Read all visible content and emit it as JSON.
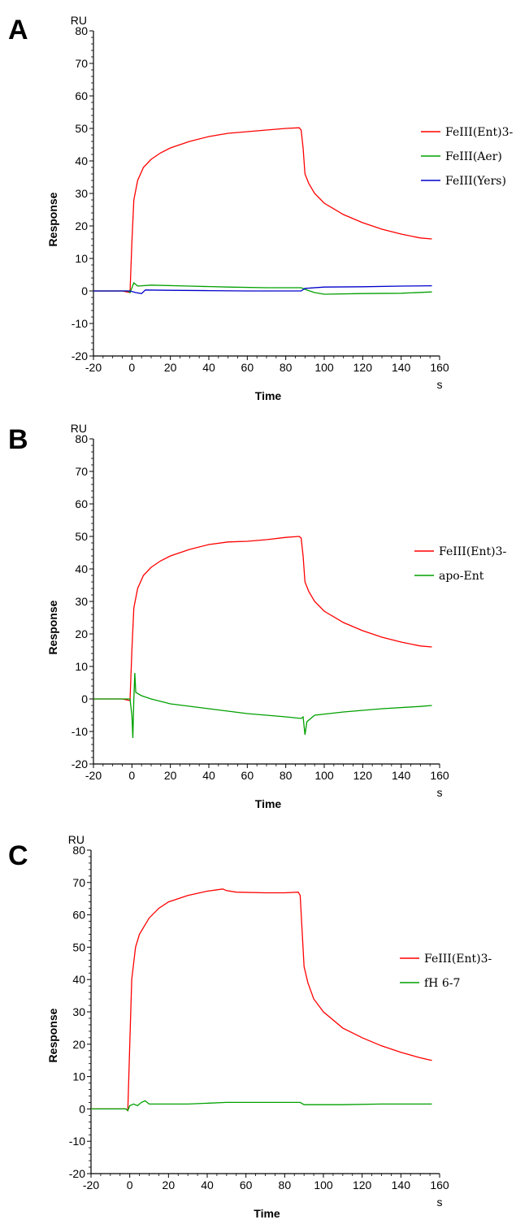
{
  "chart_data": [
    {
      "panel_label": "A",
      "type": "line",
      "xlabel": "Time",
      "x_unit": "s",
      "ylabel": "Response",
      "y_unit": "RU",
      "xlim": [
        -20,
        160
      ],
      "ylim": [
        -20,
        80
      ],
      "x_ticks": [
        "-20",
        "0",
        "20",
        "40",
        "60",
        "80",
        "100",
        "120",
        "140",
        "160"
      ],
      "y_ticks": [
        "80",
        "70",
        "60",
        "50",
        "40",
        "30",
        "20",
        "10",
        "0",
        "-10",
        "-20"
      ],
      "legend_position": "right",
      "series": [
        {
          "name": "FeIII(Ent)3-",
          "color": "#ff0000",
          "points": [
            [
              -20,
              0
            ],
            [
              -5,
              0
            ],
            [
              -1,
              -0.5
            ],
            [
              0,
              15
            ],
            [
              1,
              28
            ],
            [
              3,
              34
            ],
            [
              6,
              38
            ],
            [
              10,
              40.5
            ],
            [
              15,
              42.5
            ],
            [
              20,
              44
            ],
            [
              30,
              46
            ],
            [
              40,
              47.5
            ],
            [
              50,
              48.5
            ],
            [
              60,
              49
            ],
            [
              70,
              49.5
            ],
            [
              80,
              50
            ],
            [
              87,
              50.2
            ],
            [
              88,
              49.5
            ],
            [
              89,
              44
            ],
            [
              90,
              36
            ],
            [
              92,
              33
            ],
            [
              95,
              30
            ],
            [
              100,
              27
            ],
            [
              110,
              23.5
            ],
            [
              120,
              21
            ],
            [
              130,
              19
            ],
            [
              140,
              17.5
            ],
            [
              150,
              16.3
            ],
            [
              156,
              16
            ]
          ]
        },
        {
          "name": "FeIII(Aer)",
          "color": "#00a000",
          "points": [
            [
              -20,
              0
            ],
            [
              -2,
              0
            ],
            [
              -1,
              -0.5
            ],
            [
              1,
              2.5
            ],
            [
              3,
              1.5
            ],
            [
              10,
              1.8
            ],
            [
              30,
              1.5
            ],
            [
              50,
              1.2
            ],
            [
              70,
              1
            ],
            [
              88,
              1
            ],
            [
              90,
              0.5
            ],
            [
              95,
              -0.5
            ],
            [
              100,
              -1
            ],
            [
              120,
              -0.8
            ],
            [
              140,
              -0.7
            ],
            [
              156,
              -0.3
            ]
          ]
        },
        {
          "name": "FeIII(Yers)",
          "color": "#0000cc",
          "points": [
            [
              -20,
              0
            ],
            [
              -1,
              0
            ],
            [
              2,
              -0.5
            ],
            [
              5,
              -0.8
            ],
            [
              7,
              0.3
            ],
            [
              20,
              0.2
            ],
            [
              40,
              0.1
            ],
            [
              60,
              0
            ],
            [
              88,
              0
            ],
            [
              90,
              0.8
            ],
            [
              100,
              1.2
            ],
            [
              120,
              1.3
            ],
            [
              140,
              1.5
            ],
            [
              156,
              1.6
            ]
          ]
        }
      ]
    },
    {
      "panel_label": "B",
      "type": "line",
      "xlabel": "Time",
      "x_unit": "s",
      "ylabel": "Response",
      "y_unit": "RU",
      "xlim": [
        -20,
        160
      ],
      "ylim": [
        -20,
        80
      ],
      "x_ticks": [
        "-20",
        "0",
        "20",
        "40",
        "60",
        "80",
        "100",
        "120",
        "140",
        "160"
      ],
      "y_ticks": [
        "80",
        "70",
        "60",
        "50",
        "40",
        "30",
        "20",
        "10",
        "0",
        "-10",
        "-20"
      ],
      "legend_position": "right",
      "series": [
        {
          "name": "FeIII(Ent)3-",
          "color": "#ff0000",
          "points": [
            [
              -20,
              0
            ],
            [
              -5,
              0
            ],
            [
              -1,
              -0.5
            ],
            [
              0,
              15
            ],
            [
              1,
              28
            ],
            [
              3,
              34
            ],
            [
              6,
              38
            ],
            [
              10,
              40.5
            ],
            [
              15,
              42.5
            ],
            [
              20,
              44
            ],
            [
              30,
              46
            ],
            [
              40,
              47.5
            ],
            [
              50,
              48.3
            ],
            [
              60,
              48.5
            ],
            [
              70,
              49
            ],
            [
              80,
              49.7
            ],
            [
              87,
              50
            ],
            [
              88,
              49.5
            ],
            [
              89,
              44
            ],
            [
              90,
              36
            ],
            [
              92,
              33
            ],
            [
              95,
              30
            ],
            [
              100,
              27
            ],
            [
              110,
              23.5
            ],
            [
              120,
              21
            ],
            [
              130,
              19
            ],
            [
              140,
              17.5
            ],
            [
              150,
              16.3
            ],
            [
              156,
              16
            ]
          ]
        },
        {
          "name": "apo-Ent",
          "color": "#00a000",
          "points": [
            [
              -20,
              0
            ],
            [
              -1,
              0
            ],
            [
              0,
              -5
            ],
            [
              0.5,
              -12
            ],
            [
              1,
              0
            ],
            [
              1.5,
              8
            ],
            [
              2,
              2
            ],
            [
              5,
              1
            ],
            [
              10,
              0
            ],
            [
              20,
              -1.5
            ],
            [
              40,
              -3
            ],
            [
              60,
              -4.5
            ],
            [
              80,
              -5.5
            ],
            [
              88,
              -6
            ],
            [
              89,
              -5.5
            ],
            [
              90,
              -11
            ],
            [
              91,
              -7
            ],
            [
              95,
              -5
            ],
            [
              110,
              -4
            ],
            [
              130,
              -3
            ],
            [
              150,
              -2.3
            ],
            [
              156,
              -2
            ]
          ]
        }
      ]
    },
    {
      "panel_label": "C",
      "type": "line",
      "xlabel": "Time",
      "x_unit": "s",
      "ylabel": "Response",
      "y_unit": "RU",
      "xlim": [
        -20,
        160
      ],
      "ylim": [
        -20,
        80
      ],
      "x_ticks": [
        "-20",
        "0",
        "20",
        "40",
        "60",
        "80",
        "100",
        "120",
        "140",
        "160"
      ],
      "y_ticks": [
        "80",
        "70",
        "60",
        "50",
        "40",
        "30",
        "20",
        "10",
        "0",
        "-10",
        "-20"
      ],
      "legend_position": "right",
      "series": [
        {
          "name": "FeIII(Ent)3-",
          "color": "#ff0000",
          "points": [
            [
              -20,
              0
            ],
            [
              -2,
              0
            ],
            [
              -1,
              -0.5
            ],
            [
              0,
              20
            ],
            [
              1,
              40
            ],
            [
              3,
              50
            ],
            [
              5,
              54
            ],
            [
              10,
              59
            ],
            [
              15,
              62
            ],
            [
              20,
              64
            ],
            [
              30,
              66
            ],
            [
              40,
              67.3
            ],
            [
              48,
              68
            ],
            [
              50,
              67.5
            ],
            [
              55,
              67
            ],
            [
              70,
              66.8
            ],
            [
              80,
              66.8
            ],
            [
              87,
              67
            ],
            [
              88,
              66
            ],
            [
              89,
              55
            ],
            [
              90,
              44
            ],
            [
              92,
              39
            ],
            [
              95,
              34
            ],
            [
              100,
              30
            ],
            [
              110,
              25
            ],
            [
              120,
              22
            ],
            [
              130,
              19.5
            ],
            [
              140,
              17.5
            ],
            [
              150,
              15.8
            ],
            [
              156,
              15
            ]
          ]
        },
        {
          "name": "fH 6-7",
          "color": "#00a000",
          "points": [
            [
              -20,
              0
            ],
            [
              -2,
              0
            ],
            [
              -1,
              -0.5
            ],
            [
              0,
              1
            ],
            [
              2,
              1.5
            ],
            [
              4,
              1
            ],
            [
              6,
              2
            ],
            [
              8,
              2.5
            ],
            [
              10,
              1.5
            ],
            [
              30,
              1.5
            ],
            [
              50,
              2
            ],
            [
              70,
              2
            ],
            [
              88,
              2
            ],
            [
              90,
              1.3
            ],
            [
              110,
              1.3
            ],
            [
              130,
              1.5
            ],
            [
              150,
              1.5
            ],
            [
              156,
              1.5
            ]
          ]
        }
      ]
    }
  ]
}
